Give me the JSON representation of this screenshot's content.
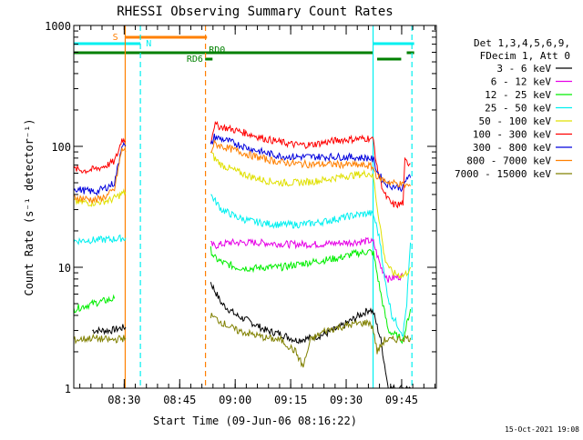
{
  "chart_data": {
    "type": "line",
    "title": "RHESSI Observing Summary Count Rates",
    "xlabel": "Start Time (09-Jun-06 08:16:22)",
    "ylabel": "Count Rate (s⁻¹ detector⁻¹)",
    "y_scale": "log",
    "ylim": [
      1,
      1000
    ],
    "xlim_minutes": [
      0,
      98
    ],
    "x_ticks": [
      {
        "t": 13.63,
        "label": "08:30"
      },
      {
        "t": 28.63,
        "label": "08:45"
      },
      {
        "t": 43.63,
        "label": "09:00"
      },
      {
        "t": 58.63,
        "label": "09:15"
      },
      {
        "t": 73.63,
        "label": "09:30"
      },
      {
        "t": 88.63,
        "label": "09:45"
      }
    ],
    "y_ticks": [
      {
        "v": 1,
        "label": "1"
      },
      {
        "v": 10,
        "label": "10"
      },
      {
        "v": 100,
        "label": "100"
      },
      {
        "v": 1000,
        "label": "1000"
      }
    ],
    "legend_header": [
      "Det 1,3,4,5,6,9,",
      "FDecim 1, Att 0"
    ],
    "grid": false,
    "legend_position": "right",
    "series": [
      {
        "name": "3 - 6 keV",
        "color": "#000000",
        "segments": [
          [
            [
              5,
              3.0
            ],
            [
              10,
              3.0
            ],
            [
              14,
              3.2
            ]
          ],
          [
            [
              37,
              7.5
            ],
            [
              38,
              6.5
            ],
            [
              40,
              5.0
            ],
            [
              44,
              4.0
            ],
            [
              48,
              3.5
            ],
            [
              52,
              3.0
            ],
            [
              56,
              2.8
            ],
            [
              60,
              2.5
            ],
            [
              64,
              2.6
            ],
            [
              68,
              2.8
            ],
            [
              72,
              3.2
            ],
            [
              76,
              3.8
            ],
            [
              80,
              4.5
            ],
            [
              81,
              4.2
            ],
            [
              83,
              2.5
            ],
            [
              85,
              1.0
            ],
            [
              89,
              1.0
            ],
            [
              91,
              1.0
            ]
          ]
        ]
      },
      {
        "name": "6 - 12 keV",
        "color": "#e600e6",
        "segments": [
          [
            [
              37,
              15.5
            ],
            [
              38,
              15.0
            ],
            [
              42,
              16.0
            ],
            [
              50,
              16.0
            ],
            [
              58,
              15.5
            ],
            [
              66,
              15.5
            ],
            [
              74,
              16.0
            ],
            [
              80,
              16.5
            ],
            [
              81,
              16.0
            ],
            [
              83,
              10.0
            ],
            [
              85,
              8.0
            ],
            [
              89,
              8.5
            ]
          ]
        ]
      },
      {
        "name": "12 - 25 keV",
        "color": "#00ee00",
        "segments": [
          [
            [
              0,
              4.5
            ],
            [
              5,
              5.0
            ],
            [
              11,
              5.5
            ]
          ],
          [
            [
              37,
              14.0
            ],
            [
              38,
              12.0
            ],
            [
              40,
              11.0
            ],
            [
              44,
              10.0
            ],
            [
              48,
              9.8
            ],
            [
              52,
              10.0
            ],
            [
              56,
              10.0
            ],
            [
              60,
              10.5
            ],
            [
              64,
              11.0
            ],
            [
              68,
              11.5
            ],
            [
              72,
              12.0
            ],
            [
              76,
              13.0
            ],
            [
              80,
              13.5
            ],
            [
              81,
              13.0
            ],
            [
              83,
              6.0
            ],
            [
              85,
              3.0
            ],
            [
              89,
              2.5
            ],
            [
              91,
              4.5
            ]
          ]
        ]
      },
      {
        "name": "25 - 50 keV",
        "color": "#00f0f0",
        "segments": [
          [
            [
              0,
              16.5
            ],
            [
              5,
              16.8
            ],
            [
              10,
              17.0
            ],
            [
              14,
              17.5
            ]
          ],
          [
            [
              37,
              40
            ],
            [
              38,
              36
            ],
            [
              40,
              30
            ],
            [
              44,
              26
            ],
            [
              48,
              24
            ],
            [
              52,
              23
            ],
            [
              56,
              22.5
            ],
            [
              60,
              22.5
            ],
            [
              64,
              23
            ],
            [
              68,
              24
            ],
            [
              72,
              25.5
            ],
            [
              76,
              27
            ],
            [
              80,
              28
            ],
            [
              81,
              27
            ],
            [
              82,
              21
            ],
            [
              83,
              15
            ],
            [
              84,
              8
            ],
            [
              86,
              4
            ],
            [
              89,
              2.8
            ],
            [
              90,
              5
            ],
            [
              91,
              16
            ]
          ]
        ]
      },
      {
        "name": "50 - 100 keV",
        "color": "#e0e000",
        "segments": [
          [
            [
              0,
              35
            ],
            [
              5,
              34
            ],
            [
              10,
              36
            ],
            [
              14,
              42
            ]
          ],
          [
            [
              37,
              90
            ],
            [
              38,
              80
            ],
            [
              40,
              70
            ],
            [
              44,
              62
            ],
            [
              48,
              56
            ],
            [
              52,
              52
            ],
            [
              56,
              50
            ],
            [
              60,
              50
            ],
            [
              64,
              51
            ],
            [
              68,
              53
            ],
            [
              72,
              56
            ],
            [
              76,
              58
            ],
            [
              80,
              60
            ],
            [
              81,
              55
            ],
            [
              82,
              32
            ],
            [
              83,
              20
            ],
            [
              84,
              12
            ],
            [
              86,
              9
            ],
            [
              89,
              8.5
            ],
            [
              90,
              9
            ],
            [
              91,
              10
            ]
          ]
        ]
      },
      {
        "name": "100 - 300 keV",
        "color": "#ff0000",
        "segments": [
          [
            [
              0,
              65
            ],
            [
              3,
              63
            ],
            [
              6,
              65
            ],
            [
              9,
              70
            ],
            [
              11,
              75
            ],
            [
              12,
              90
            ],
            [
              13,
              115
            ],
            [
              14,
              110
            ]
          ],
          [
            [
              37,
              110
            ],
            [
              38,
              150
            ],
            [
              40,
              145
            ],
            [
              44,
              135
            ],
            [
              48,
              125
            ],
            [
              52,
              115
            ],
            [
              56,
              108
            ],
            [
              60,
              103
            ],
            [
              64,
              103
            ],
            [
              68,
              108
            ],
            [
              72,
              113
            ],
            [
              76,
              115
            ],
            [
              80,
              117
            ],
            [
              81,
              112
            ],
            [
              82,
              65
            ],
            [
              84,
              40
            ],
            [
              86,
              33
            ],
            [
              88,
              33
            ],
            [
              89,
              34
            ],
            [
              89.5,
              75
            ],
            [
              91,
              72
            ]
          ]
        ]
      },
      {
        "name": "300 - 800 keV",
        "color": "#0000dd",
        "segments": [
          [
            [
              0,
              45
            ],
            [
              3,
              43
            ],
            [
              6,
              42
            ],
            [
              9,
              46
            ],
            [
              11,
              50
            ],
            [
              12,
              70
            ],
            [
              13,
              105
            ],
            [
              14,
              100
            ]
          ],
          [
            [
              37,
              100
            ],
            [
              38,
              120
            ],
            [
              40,
              115
            ],
            [
              44,
              105
            ],
            [
              48,
              95
            ],
            [
              52,
              88
            ],
            [
              56,
              83
            ],
            [
              60,
              82
            ],
            [
              64,
              82
            ],
            [
              68,
              82
            ],
            [
              72,
              82
            ],
            [
              76,
              81
            ],
            [
              80,
              80
            ],
            [
              81,
              77
            ],
            [
              82,
              62
            ],
            [
              84,
              50
            ],
            [
              86,
              47
            ],
            [
              88,
              46
            ],
            [
              89,
              45
            ],
            [
              90,
              55
            ],
            [
              91,
              55
            ]
          ]
        ]
      },
      {
        "name": "800 - 7000 keV",
        "color": "#ff8000",
        "segments": [
          [
            [
              0,
              38
            ],
            [
              3,
              37
            ],
            [
              6,
              36
            ],
            [
              9,
              39
            ],
            [
              11,
              44
            ],
            [
              12,
              65
            ],
            [
              13,
              95
            ],
            [
              14,
              90
            ]
          ],
          [
            [
              37,
              90
            ],
            [
              38,
              105
            ],
            [
              40,
              100
            ],
            [
              44,
              92
            ],
            [
              48,
              84
            ],
            [
              52,
              78
            ],
            [
              56,
              74
            ],
            [
              60,
              72
            ],
            [
              64,
              71
            ],
            [
              68,
              71
            ],
            [
              72,
              71
            ],
            [
              76,
              70
            ],
            [
              80,
              69
            ],
            [
              81,
              66
            ],
            [
              82,
              56
            ],
            [
              84,
              52
            ],
            [
              86,
              50
            ],
            [
              88,
              49
            ],
            [
              89,
              48
            ],
            [
              91,
              47
            ]
          ]
        ]
      },
      {
        "name": "7000 - 15000 keV",
        "color": "#808000",
        "segments": [
          [
            [
              0,
              2.5
            ],
            [
              5,
              2.6
            ],
            [
              10,
              2.5
            ],
            [
              14,
              2.6
            ]
          ],
          [
            [
              37,
              4.0
            ],
            [
              40,
              3.5
            ],
            [
              44,
              3.0
            ],
            [
              48,
              2.8
            ],
            [
              52,
              2.6
            ],
            [
              56,
              2.5
            ],
            [
              60,
              2.0
            ],
            [
              62,
              1.5
            ],
            [
              64,
              2.5
            ],
            [
              68,
              3.0
            ],
            [
              72,
              3.2
            ],
            [
              76,
              3.4
            ],
            [
              80,
              3.5
            ],
            [
              81,
              3.0
            ],
            [
              82,
              2.0
            ],
            [
              84,
              2.5
            ],
            [
              86,
              2.5
            ],
            [
              89,
              2.6
            ],
            [
              91,
              2.6
            ]
          ]
        ]
      }
    ],
    "vertical_markers": [
      {
        "t": 13.9,
        "color": "#ff8000",
        "style": "solid"
      },
      {
        "t": 18.0,
        "color": "#00f0f0",
        "style": "dashed"
      },
      {
        "t": 35.6,
        "color": "#ff8000",
        "style": "dashed"
      },
      {
        "t": 80.9,
        "color": "#00f0f0",
        "style": "solid"
      },
      {
        "t": 91.4,
        "color": "#00f0f0",
        "style": "dashed"
      }
    ],
    "state_bars": [
      {
        "label": "S",
        "color": "#ff8000",
        "y_level": 1,
        "spans": [
          [
            14,
            36
          ]
        ],
        "label_at": 10.5
      },
      {
        "label": "N",
        "color": "#00f0f0",
        "y_level": 2,
        "spans": [
          [
            0,
            18.0
          ],
          [
            81,
            92
          ]
        ],
        "label_at": 19.5
      },
      {
        "label": "RD0",
        "color": "#008000",
        "y_level": 3,
        "spans": [
          [
            0,
            81
          ],
          [
            90,
            92
          ]
        ],
        "label_at": 36.5
      },
      {
        "label": "RD6",
        "color": "#008000",
        "y_level": 4,
        "spans": [
          [
            35.5,
            37.5
          ],
          [
            82,
            88.5
          ]
        ],
        "label_at": 30.5
      }
    ],
    "footer_date": "15-Oct-2021 19:08"
  }
}
